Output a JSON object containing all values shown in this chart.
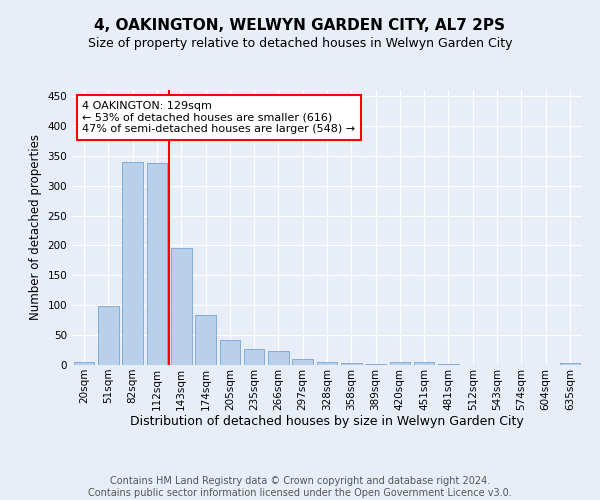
{
  "title": "4, OAKINGTON, WELWYN GARDEN CITY, AL7 2PS",
  "subtitle": "Size of property relative to detached houses in Welwyn Garden City",
  "xlabel": "Distribution of detached houses by size in Welwyn Garden City",
  "ylabel": "Number of detached properties",
  "footer_line1": "Contains HM Land Registry data © Crown copyright and database right 2024.",
  "footer_line2": "Contains public sector information licensed under the Open Government Licence v3.0.",
  "categories": [
    "20sqm",
    "51sqm",
    "82sqm",
    "112sqm",
    "143sqm",
    "174sqm",
    "205sqm",
    "235sqm",
    "266sqm",
    "297sqm",
    "328sqm",
    "358sqm",
    "389sqm",
    "420sqm",
    "451sqm",
    "481sqm",
    "512sqm",
    "543sqm",
    "574sqm",
    "604sqm",
    "635sqm"
  ],
  "values": [
    5,
    98,
    340,
    338,
    196,
    84,
    42,
    27,
    24,
    10,
    5,
    3,
    2,
    5,
    5,
    1,
    0,
    0,
    0,
    0,
    3
  ],
  "bar_color": "#b8d0ea",
  "bar_edge_color": "#6699cc",
  "vline_x": 3.5,
  "vline_color": "red",
  "annotation_text": "4 OAKINGTON: 129sqm\n← 53% of detached houses are smaller (616)\n47% of semi-detached houses are larger (548) →",
  "annotation_box_color": "white",
  "annotation_box_edge_color": "red",
  "ylim": [
    0,
    460
  ],
  "yticks": [
    0,
    50,
    100,
    150,
    200,
    250,
    300,
    350,
    400,
    450
  ],
  "background_color": "#e8eef8",
  "plot_bg_color": "#e8eef8",
  "title_fontsize": 11,
  "subtitle_fontsize": 9,
  "ylabel_fontsize": 8.5,
  "xlabel_fontsize": 9,
  "tick_fontsize": 7.5,
  "footer_fontsize": 7,
  "annot_fontsize": 8
}
